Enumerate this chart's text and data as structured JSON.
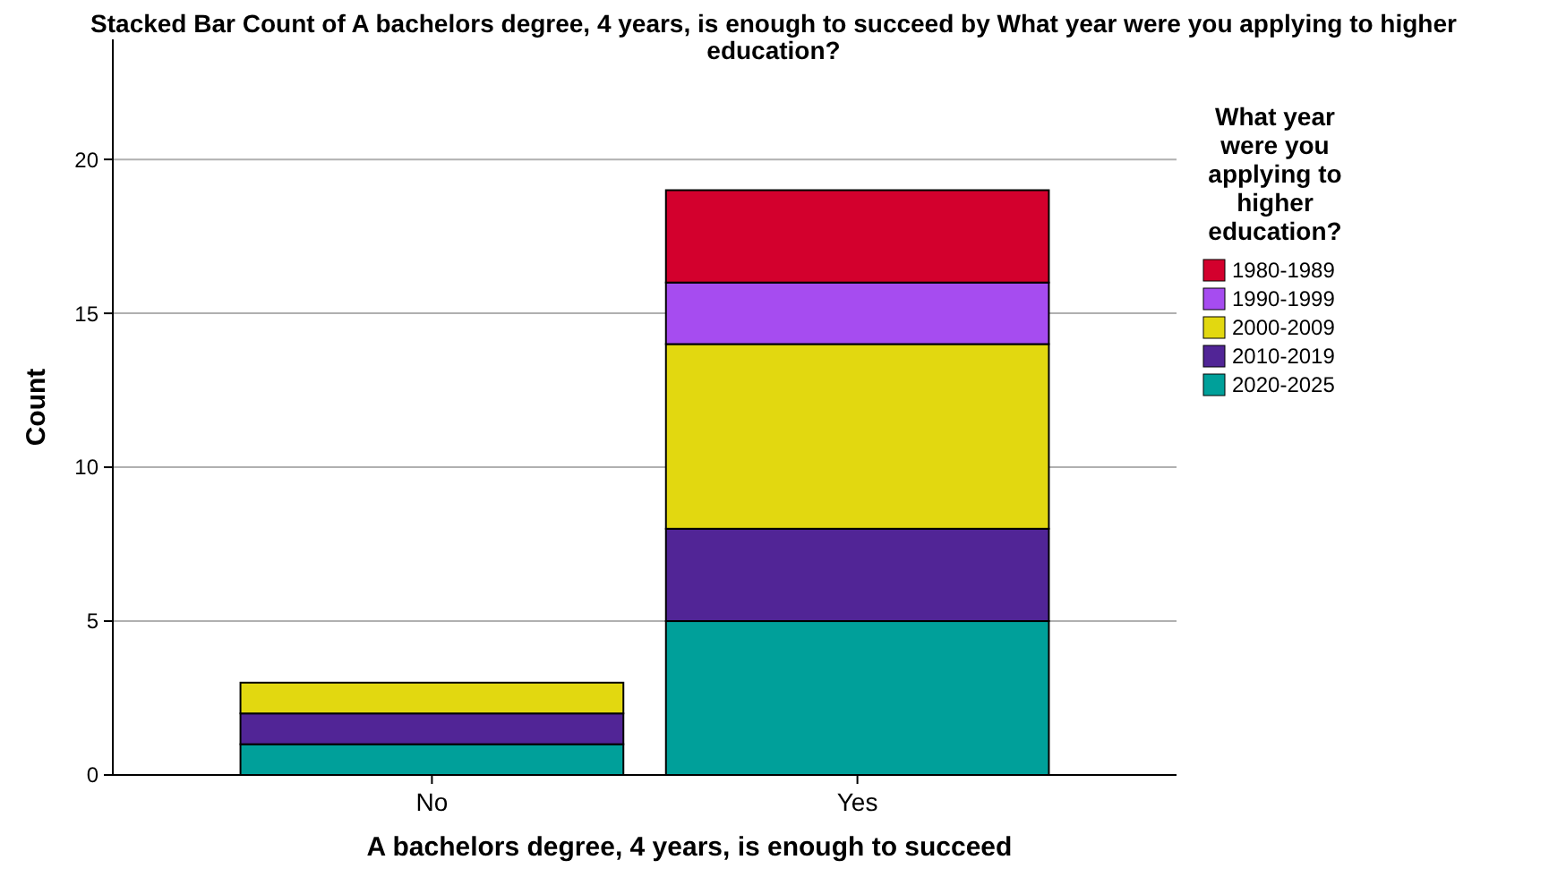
{
  "chart_data": {
    "type": "bar",
    "title": "Stacked Bar Count of A bachelors degree, 4 years, is enough to succeed by What year were you applying to higher education?",
    "xlabel": "A bachelors degree, 4 years, is enough to succeed",
    "ylabel": "Count",
    "legend_title": "What year were you applying to higher education?",
    "categories": [
      "No",
      "Yes"
    ],
    "stacked": true,
    "series": [
      {
        "name": "2020-2025",
        "color": "#00a09a",
        "values": [
          1,
          5
        ]
      },
      {
        "name": "2010-2019",
        "color": "#512596",
        "values": [
          1,
          3
        ]
      },
      {
        "name": "2000-2009",
        "color": "#e2d810",
        "values": [
          1,
          6
        ]
      },
      {
        "name": "1990-1999",
        "color": "#a64cf0",
        "values": [
          null,
          2
        ]
      },
      {
        "name": "1980-1989",
        "color": "#d3002d",
        "values": [
          null,
          3
        ]
      }
    ],
    "ylim": [
      0,
      23.9
    ],
    "yticks": [
      0,
      5,
      10,
      15,
      20
    ],
    "grid": "y",
    "legend": "right"
  }
}
